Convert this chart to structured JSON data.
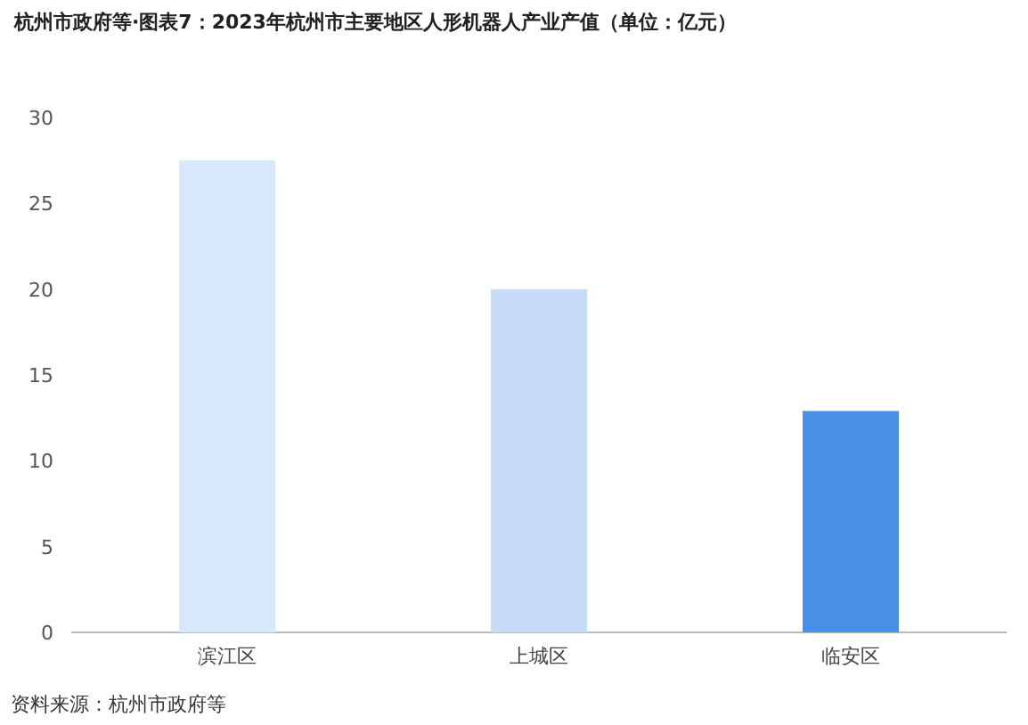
{
  "chart_data": {
    "type": "bar",
    "title": "杭州市政府等·图表7：2023年杭州市主要地区人形机器人产业产值（单位：亿元）",
    "categories": [
      "滨江区",
      "上城区",
      "临安区"
    ],
    "values": [
      27.5,
      20,
      12.9
    ],
    "colors": [
      "#dae8fb",
      "#c5dbf8",
      "#4a8fe8"
    ],
    "ylim": [
      0,
      30
    ],
    "yticks": [
      0,
      5,
      10,
      15,
      20,
      25,
      30
    ],
    "grid": false,
    "annotations": [
      "资料来源：杭州市政府等"
    ]
  }
}
